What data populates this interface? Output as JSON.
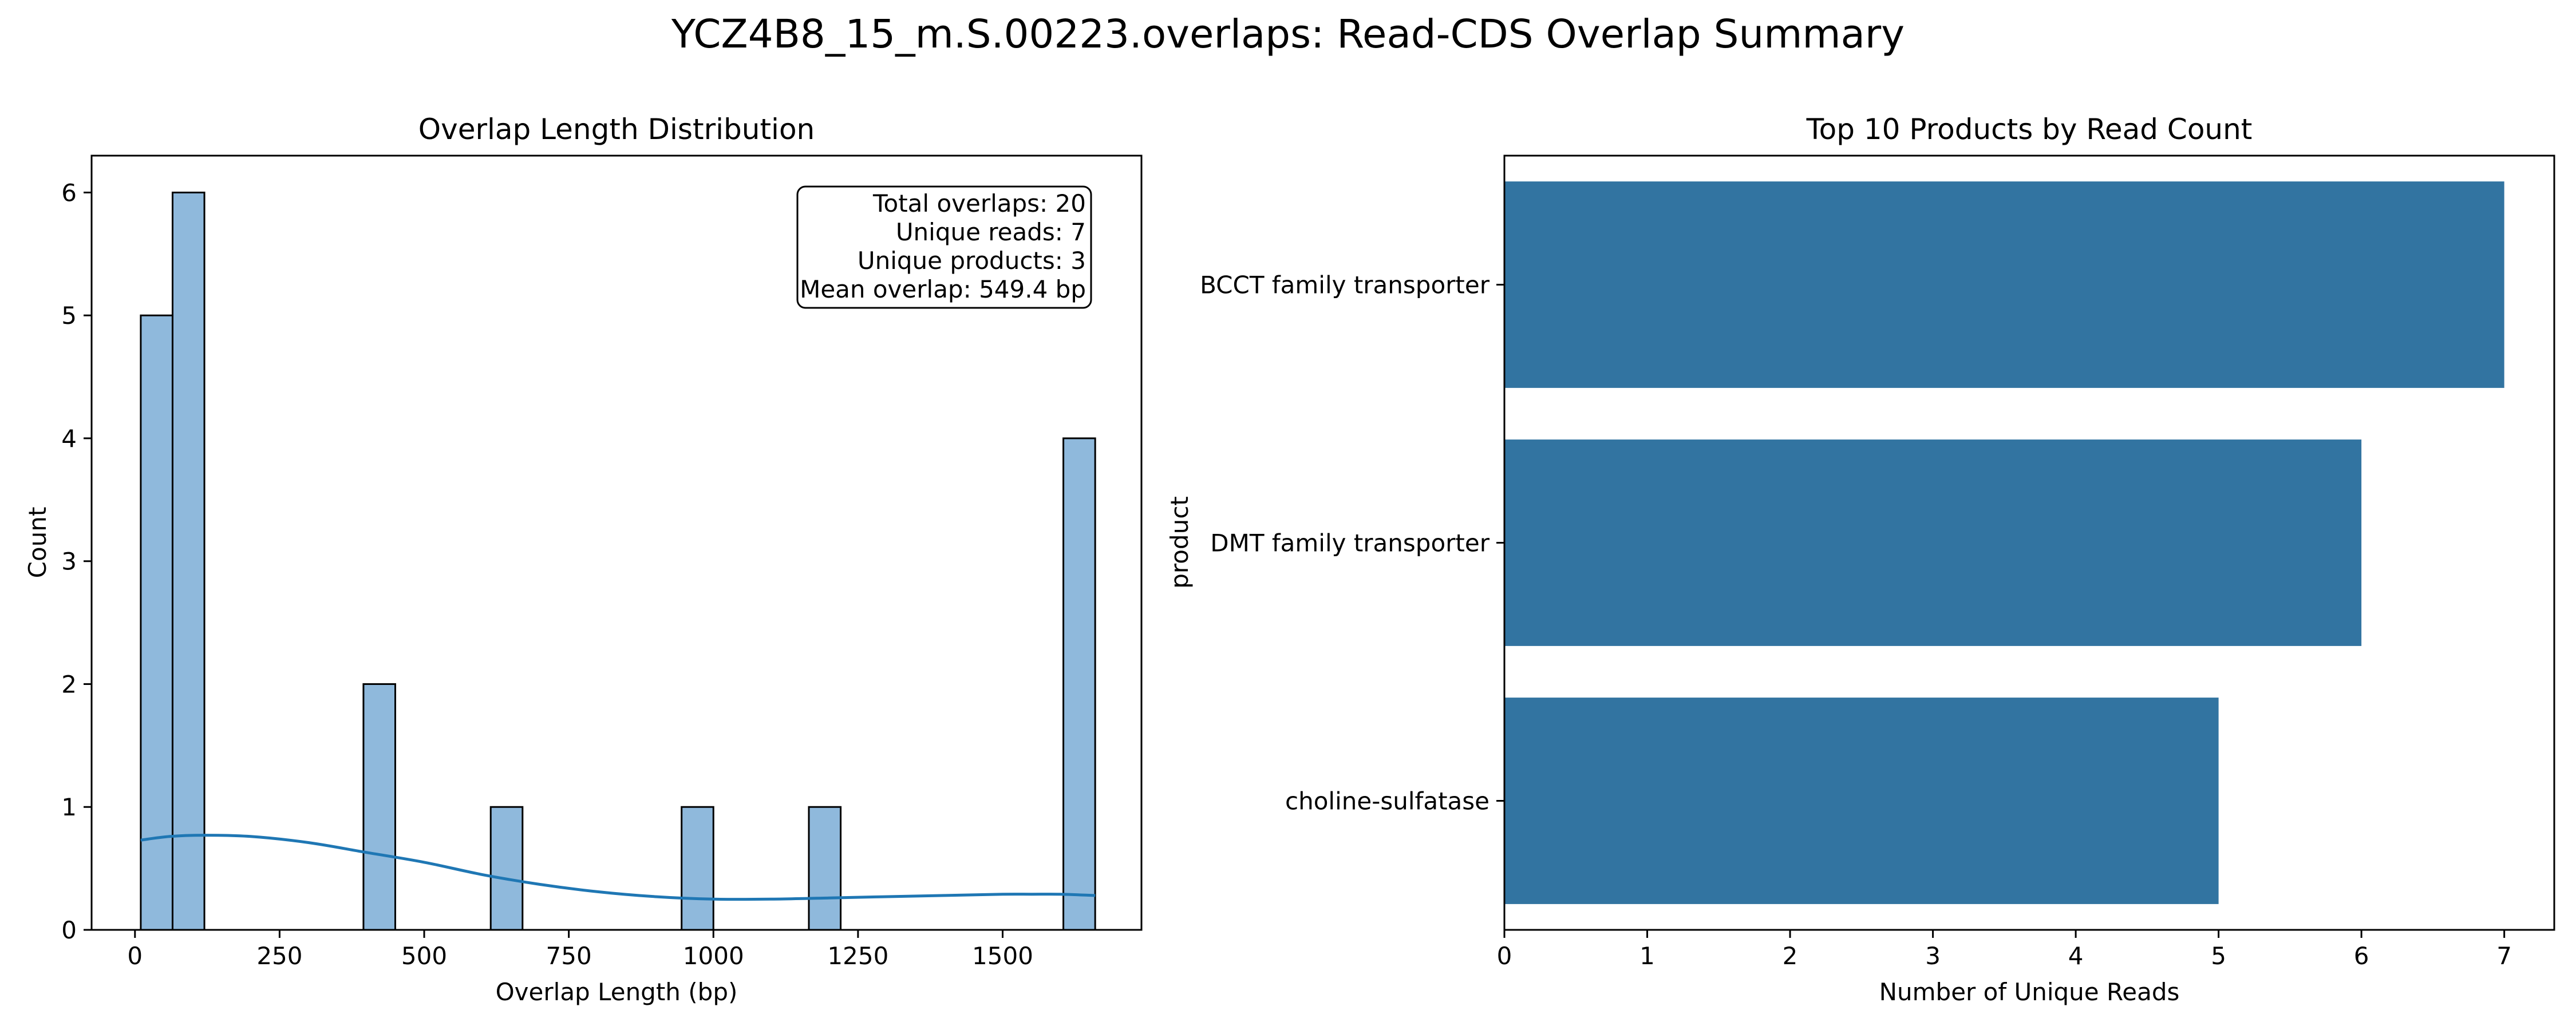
{
  "suptitle": "YCZ4B8_15_m.S.00223.overlaps: Read-CDS Overlap Summary",
  "chart_data": [
    {
      "type": "bar",
      "subtype": "histogram",
      "title": "Overlap Length Distribution",
      "xlabel": "Overlap Length (bp)",
      "ylabel": "Count",
      "xlim": [
        -75,
        1740
      ],
      "ylim": [
        0,
        6.3
      ],
      "xticks": [
        0,
        250,
        500,
        750,
        1000,
        1250,
        1500
      ],
      "yticks": [
        0,
        1,
        2,
        3,
        4,
        5,
        6
      ],
      "bar_color": "#8fb9dc",
      "kde_color": "#1f77b4",
      "bins": [
        {
          "start": 10,
          "end": 65,
          "count": 5
        },
        {
          "start": 65,
          "end": 120,
          "count": 6
        },
        {
          "start": 395,
          "end": 450,
          "count": 2
        },
        {
          "start": 615,
          "end": 670,
          "count": 1
        },
        {
          "start": 945,
          "end": 1000,
          "count": 1
        },
        {
          "start": 1165,
          "end": 1220,
          "count": 1
        },
        {
          "start": 1605,
          "end": 1660,
          "count": 4
        }
      ],
      "kde": {
        "x": [
          10,
          60,
          120,
          200,
          300,
          400,
          500,
          600,
          700,
          800,
          900,
          1000,
          1100,
          1200,
          1300,
          1400,
          1500,
          1550,
          1600,
          1660
        ],
        "y": [
          0.73,
          0.76,
          0.77,
          0.76,
          0.71,
          0.63,
          0.55,
          0.45,
          0.37,
          0.31,
          0.27,
          0.25,
          0.25,
          0.26,
          0.27,
          0.28,
          0.29,
          0.29,
          0.29,
          0.28
        ]
      },
      "annotation": [
        "Total overlaps: 20",
        "Unique reads: 7",
        "Unique products: 3",
        "Mean overlap: 549.4 bp"
      ]
    },
    {
      "type": "bar",
      "orientation": "horizontal",
      "title": "Top 10 Products by Read Count",
      "xlabel": "Number of Unique Reads",
      "ylabel": "product",
      "xlim": [
        0,
        7.35
      ],
      "xticks": [
        0,
        1,
        2,
        3,
        4,
        5,
        6,
        7
      ],
      "bar_color": "#3274a1",
      "categories": [
        "BCCT family transporter",
        "DMT family transporter",
        "choline-sulfatase"
      ],
      "values": [
        7,
        6,
        5
      ]
    }
  ]
}
